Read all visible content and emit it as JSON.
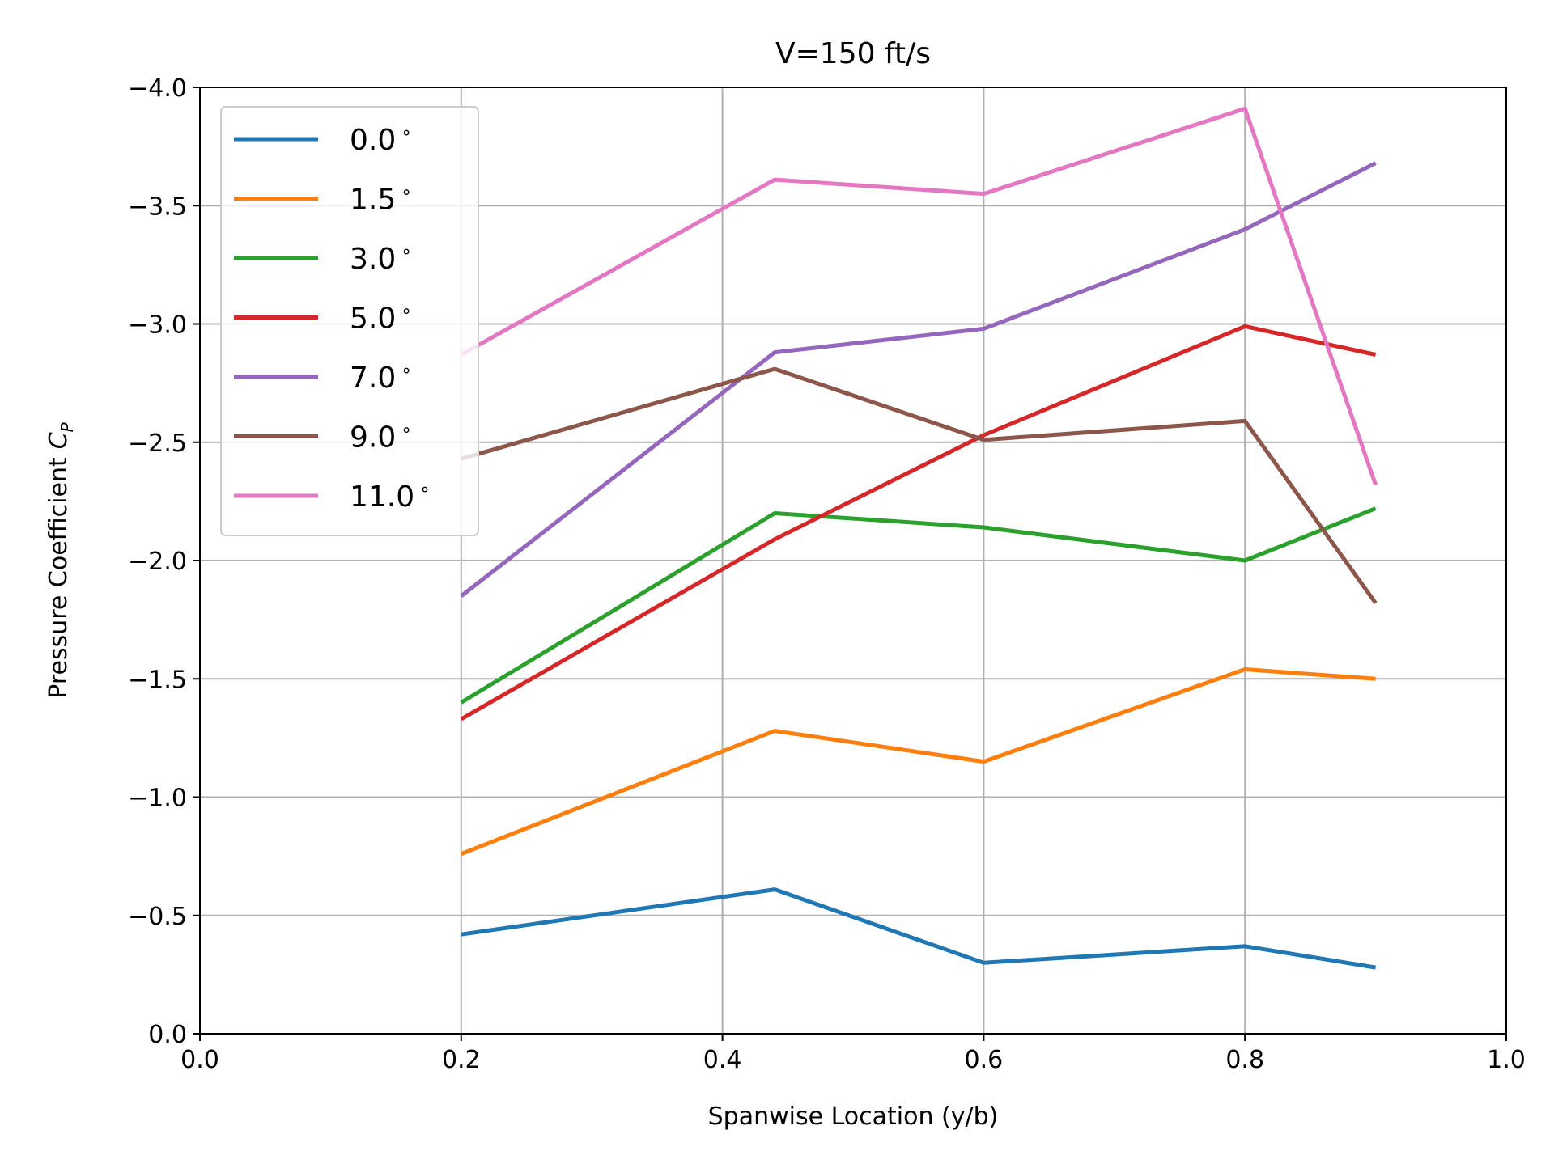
{
  "chart_data": {
    "type": "line",
    "title": "V=150 ft/s",
    "xlabel": "Spanwise Location (y/b)",
    "ylabel": "Pressure Coefficient",
    "ylabel_symbol": "C",
    "ylabel_subscript": "P",
    "xlim": [
      0.0,
      1.0
    ],
    "ylim": [
      0.0,
      -4.0
    ],
    "y_inverted": true,
    "grid": true,
    "legend_position": "upper-left",
    "xticks": [
      0.0,
      0.2,
      0.4,
      0.6,
      0.8,
      1.0
    ],
    "xtick_labels": [
      "0.0",
      "0.2",
      "0.4",
      "0.6",
      "0.8",
      "1.0"
    ],
    "yticks": [
      -4.0,
      -3.5,
      -3.0,
      -2.5,
      -2.0,
      -1.5,
      -1.0,
      -0.5,
      0.0
    ],
    "ytick_labels": [
      "−4.0",
      "−3.5",
      "−3.0",
      "−2.5",
      "−2.0",
      "−1.5",
      "−1.0",
      "−0.5",
      "0.0"
    ],
    "x": [
      0.2,
      0.44,
      0.6,
      0.8,
      0.9
    ],
    "series": [
      {
        "name": "0.0",
        "color": "#1f77b4",
        "values": [
          -0.42,
          -0.61,
          -0.3,
          -0.37,
          -0.28
        ]
      },
      {
        "name": "1.5",
        "color": "#ff7f0e",
        "values": [
          -0.76,
          -1.28,
          -1.15,
          -1.54,
          -1.5
        ]
      },
      {
        "name": "3.0",
        "color": "#2ca02c",
        "values": [
          -1.4,
          -2.2,
          -2.14,
          -2.0,
          -2.22
        ]
      },
      {
        "name": "5.0",
        "color": "#d62728",
        "values": [
          -1.33,
          -2.09,
          -2.53,
          -2.99,
          -2.87
        ]
      },
      {
        "name": "7.0",
        "color": "#9467bd",
        "values": [
          -1.85,
          -2.88,
          -2.98,
          -3.4,
          -3.68
        ]
      },
      {
        "name": "9.0",
        "color": "#8c564b",
        "values": [
          -2.43,
          -2.81,
          -2.51,
          -2.59,
          -1.82
        ]
      },
      {
        "name": "11.0",
        "color": "#e377c2",
        "values": [
          -2.87,
          -3.61,
          -3.55,
          -3.91,
          -2.32
        ]
      }
    ],
    "legend_degree_symbol": "∘"
  }
}
